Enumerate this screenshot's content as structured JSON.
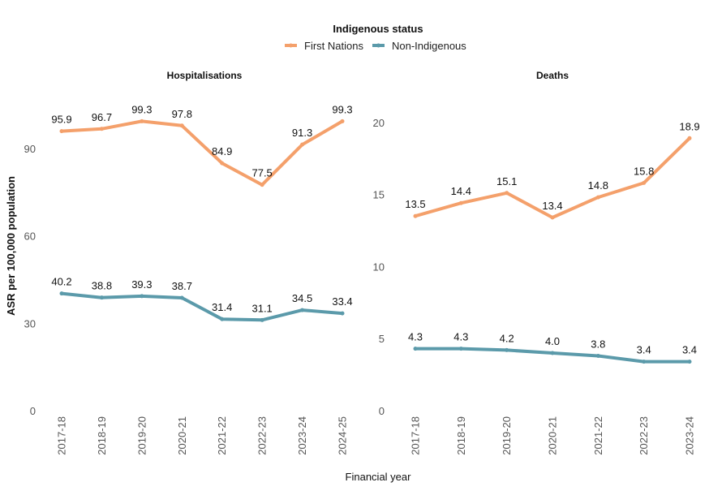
{
  "legend": {
    "title": "Indigenous status",
    "placement": "top-center"
  },
  "ylabel": "ASR per 100,000 population",
  "xlabel": "Financial year",
  "colors": {
    "First Nations": "#F4A06B",
    "Non-Indigenous": "#5B9AAA"
  },
  "chart_data": [
    {
      "type": "line",
      "title": "Hospitalisations",
      "categories": [
        "2017-18",
        "2018-19",
        "2019-20",
        "2020-21",
        "2021-22",
        "2022-23",
        "2023-24",
        "2024-25"
      ],
      "ylim": [
        0,
        110
      ],
      "yticks": [
        0,
        30,
        60,
        90
      ],
      "grid": false,
      "series": [
        {
          "name": "First Nations",
          "values": [
            95.9,
            96.7,
            99.3,
            97.8,
            84.9,
            77.5,
            91.3,
            99.3
          ],
          "labels": [
            "95.9",
            "96.7",
            "99.3",
            "97.8",
            "84.9",
            "77.5",
            "91.3",
            "99.3"
          ]
        },
        {
          "name": "Non-Indigenous",
          "values": [
            40.2,
            38.8,
            39.3,
            38.7,
            31.4,
            31.1,
            34.5,
            33.4
          ],
          "labels": [
            "40.2",
            "38.8",
            "39.3",
            "38.7",
            "31.4",
            "31.1",
            "34.5",
            "33.4"
          ]
        }
      ]
    },
    {
      "type": "line",
      "title": "Deaths",
      "categories": [
        "2017-18",
        "2018-19",
        "2019-20",
        "2020-21",
        "2021-22",
        "2022-23",
        "2023-24"
      ],
      "ylim": [
        0,
        21
      ],
      "yticks": [
        0,
        5,
        10,
        15,
        20
      ],
      "grid": false,
      "series": [
        {
          "name": "First Nations",
          "values": [
            13.5,
            14.4,
            15.1,
            13.4,
            14.8,
            15.8,
            18.9
          ],
          "labels": [
            "13.5",
            "14.4",
            "15.1",
            "13.4",
            "14.8",
            "15.8",
            "18.9"
          ]
        },
        {
          "name": "Non-Indigenous",
          "values": [
            4.3,
            4.3,
            4.2,
            4.0,
            3.8,
            3.4,
            3.4
          ],
          "labels": [
            "4.3",
            "4.3",
            "4.2",
            "4.0",
            "3.8",
            "3.4",
            "3.4"
          ]
        }
      ]
    }
  ]
}
